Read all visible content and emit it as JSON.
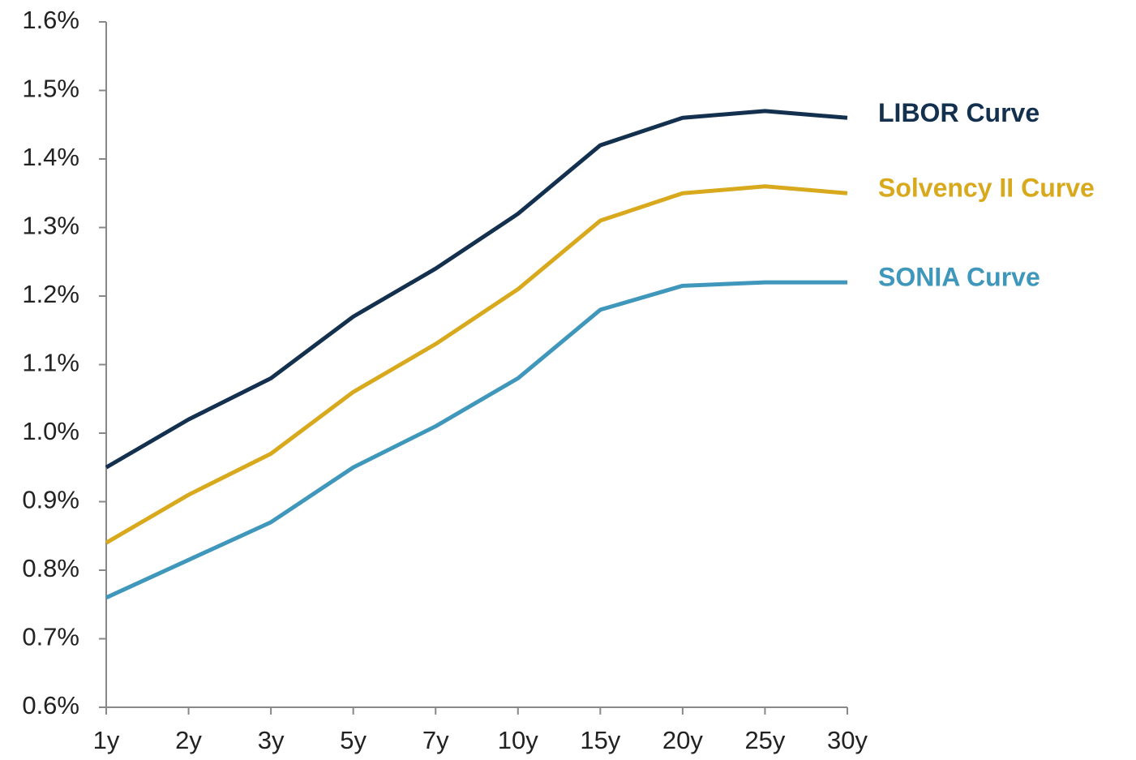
{
  "chart_data": {
    "type": "line",
    "categories": [
      "1y",
      "2y",
      "3y",
      "5y",
      "7y",
      "10y",
      "15y",
      "20y",
      "25y",
      "30y"
    ],
    "series": [
      {
        "name": "LIBOR Curve",
        "color": "#14304f",
        "values": [
          0.95,
          1.02,
          1.08,
          1.17,
          1.24,
          1.32,
          1.42,
          1.46,
          1.47,
          1.46
        ]
      },
      {
        "name": "Solvency II Curve",
        "color": "#d9a91d",
        "values": [
          0.84,
          0.91,
          0.97,
          1.06,
          1.13,
          1.21,
          1.31,
          1.35,
          1.36,
          1.35
        ]
      },
      {
        "name": "SONIA Curve",
        "color": "#3f97bb",
        "values": [
          0.76,
          0.815,
          0.87,
          0.95,
          1.01,
          1.08,
          1.18,
          1.215,
          1.22,
          1.22
        ]
      }
    ],
    "ylim": [
      0.6,
      1.6
    ],
    "yticks": [
      {
        "value": 0.6,
        "label": "0.6%"
      },
      {
        "value": 0.7,
        "label": "0.7%"
      },
      {
        "value": 0.8,
        "label": "0.8%"
      },
      {
        "value": 0.9,
        "label": "0.9%"
      },
      {
        "value": 1.0,
        "label": "1.0%"
      },
      {
        "value": 1.1,
        "label": "1.1%"
      },
      {
        "value": 1.2,
        "label": "1.2%"
      },
      {
        "value": 1.3,
        "label": "1.3%"
      },
      {
        "value": 1.4,
        "label": "1.4%"
      },
      {
        "value": 1.5,
        "label": "1.5%"
      },
      {
        "value": 1.6,
        "label": "1.6%"
      }
    ],
    "grid": false
  }
}
